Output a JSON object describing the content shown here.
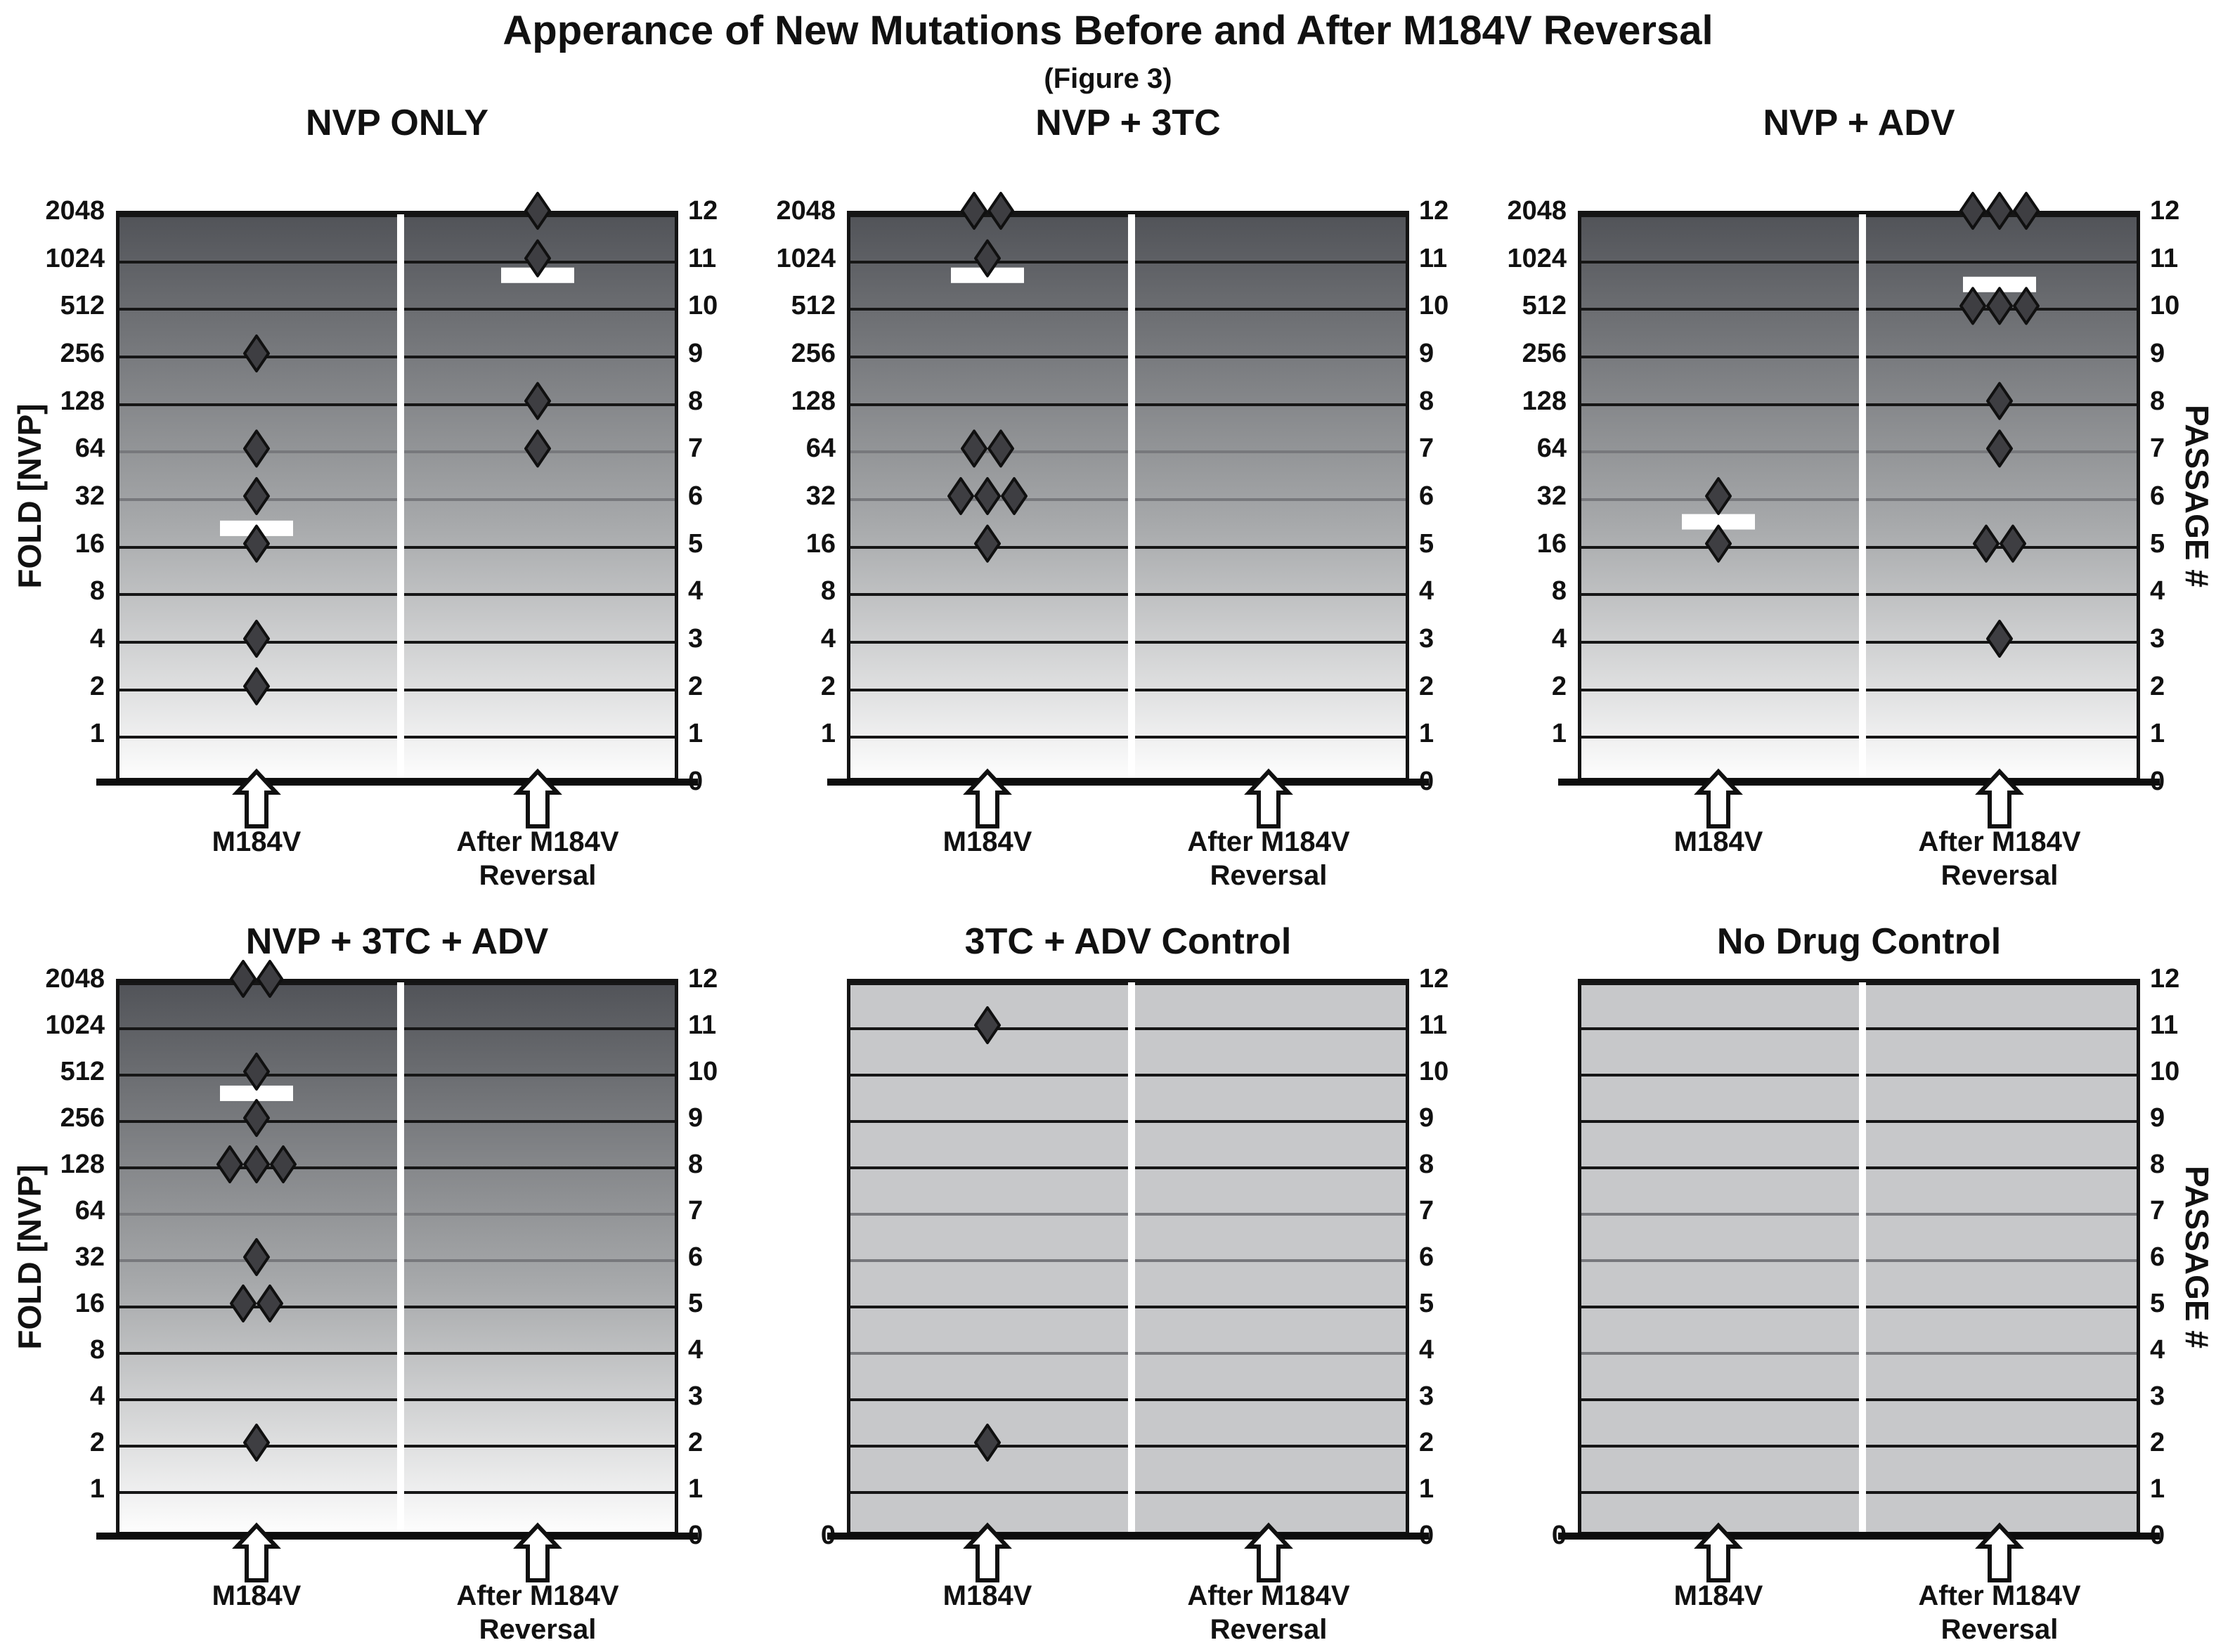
{
  "title": "Apperance of New Mutations Before and After M184V Reversal",
  "subtitle": "(Figure 3)",
  "axes": {
    "fold_axis_label": "FOLD [NVP]",
    "passage_axis_label": "PASSAGE #",
    "fold_ticks": [
      "2048",
      "1024",
      "512",
      "256",
      "128",
      "64",
      "32",
      "16",
      "8",
      "4",
      "2",
      "1"
    ],
    "passage_ticks": [
      "12",
      "11",
      "10",
      "9",
      "8",
      "7",
      "6",
      "5",
      "4",
      "3",
      "2",
      "1",
      "0"
    ],
    "origin_tick": "0",
    "x_label_left": "M184V",
    "x_label_right_line1": "After M184V",
    "x_label_right_line2": "Reversal"
  },
  "colors": {
    "text": "#111111",
    "gridline": "#161616",
    "gridline_light": "#77787c",
    "axis": "#0d0d0d",
    "gradient_top": "#515358",
    "gradient_mid": "#a7a9ab",
    "gradient_bottom": "#fdfdfd",
    "flat_bg": "#c7c8ca",
    "diamond_fill": "#3e3e42",
    "diamond_stroke": "#101010",
    "median_bar": "#ffffff",
    "divider": "#ffffff",
    "arrow_fill": "#ffffff",
    "arrow_stroke": "#101010"
  },
  "chart_data": [
    {
      "type": "scatter",
      "title": "NVP ONLY",
      "row": 0,
      "col": 0,
      "background": "gradient",
      "y_scale": "log2-fold (fold 2048=passage 12 ... fold 1=passage 1)",
      "show_fold_ticks": true,
      "show_origin_zero": false,
      "light_gridline_levels": [
        6,
        7
      ],
      "columns": [
        {
          "x_label": "M184V",
          "points_fold": [
            256,
            64,
            32,
            16,
            4,
            2
          ],
          "median_fold": 20
        },
        {
          "x_label": "After M184V Reversal",
          "points_fold": [
            2048,
            1024,
            128,
            64
          ],
          "median_fold": 800
        }
      ]
    },
    {
      "type": "scatter",
      "title": "NVP + 3TC",
      "row": 0,
      "col": 1,
      "background": "gradient",
      "show_fold_ticks": true,
      "show_origin_zero": false,
      "light_gridline_levels": [
        6,
        7
      ],
      "columns": [
        {
          "x_label": "M184V",
          "points_fold": [
            2048,
            2048,
            1024,
            64,
            64,
            32,
            32,
            32,
            16
          ],
          "median_fold": 800
        },
        {
          "x_label": "After M184V Reversal",
          "points_fold": [],
          "median_fold": null
        }
      ]
    },
    {
      "type": "scatter",
      "title": "NVP + ADV",
      "row": 0,
      "col": 2,
      "background": "gradient",
      "show_fold_ticks": true,
      "show_origin_zero": false,
      "light_gridline_levels": [
        6,
        7
      ],
      "columns": [
        {
          "x_label": "M184V",
          "points_fold": [
            32,
            16
          ],
          "median_fold": 22
        },
        {
          "x_label": "After M184V Reversal",
          "points_fold": [
            2048,
            2048,
            2048,
            512,
            512,
            512,
            128,
            64,
            16,
            16,
            4
          ],
          "median_fold": 700
        }
      ]
    },
    {
      "type": "scatter",
      "title": "NVP + 3TC + ADV",
      "row": 1,
      "col": 0,
      "background": "gradient",
      "show_fold_ticks": true,
      "show_origin_zero": false,
      "light_gridline_levels": [
        6,
        7
      ],
      "columns": [
        {
          "x_label": "M184V",
          "points_fold": [
            2048,
            2048,
            512,
            256,
            128,
            128,
            128,
            32,
            16,
            16,
            2
          ],
          "median_fold": 370
        },
        {
          "x_label": "After M184V Reversal",
          "points_fold": [],
          "median_fold": null
        }
      ]
    },
    {
      "type": "scatter",
      "title": "3TC + ADV Control",
      "row": 1,
      "col": 1,
      "background": "flat",
      "show_fold_ticks": false,
      "show_origin_zero": true,
      "light_gridline_levels": [
        4,
        6,
        7
      ],
      "columns": [
        {
          "x_label": "M184V",
          "points_passage": [
            11,
            2
          ],
          "median_fold": null
        },
        {
          "x_label": "After M184V Reversal",
          "points_passage": [],
          "median_fold": null
        }
      ]
    },
    {
      "type": "scatter",
      "title": "No Drug Control",
      "row": 1,
      "col": 2,
      "background": "flat",
      "show_fold_ticks": false,
      "show_origin_zero": true,
      "light_gridline_levels": [
        4,
        6,
        7
      ],
      "columns": [
        {
          "x_label": "M184V",
          "points_passage": [],
          "median_fold": null
        },
        {
          "x_label": "After M184V Reversal",
          "points_passage": [],
          "median_fold": null
        }
      ]
    }
  ]
}
